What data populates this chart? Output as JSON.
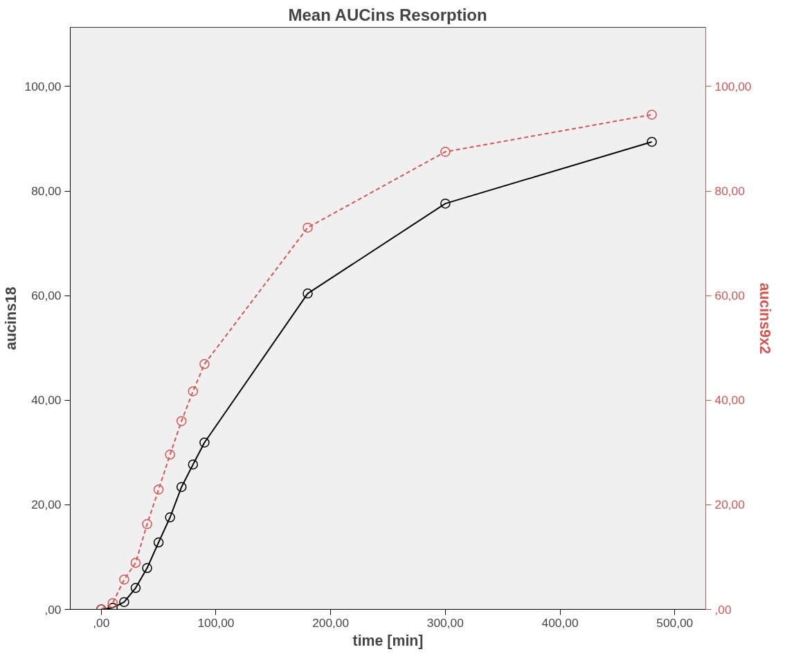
{
  "chart_data": {
    "type": "line",
    "title": "Mean AUCins Resorption",
    "xlabel": "time [min]",
    "ylabel": "aucins18",
    "y2label": "aucins9x2",
    "x": [
      0,
      10,
      20,
      30,
      40,
      50,
      60,
      70,
      80,
      90,
      180,
      300,
      480
    ],
    "series": [
      {
        "color": "#000000",
        "line_style": "solid",
        "marker": "circle",
        "values": [
          0,
          0.3,
          1.4,
          4.1,
          7.9,
          12.8,
          17.6,
          23.4,
          27.7,
          31.9,
          60.4,
          77.6,
          89.4
        ]
      },
      {
        "color": "#d9534f",
        "line_style": "dashed",
        "marker": "circle",
        "axis": "y2",
        "values": [
          0,
          1.2,
          5.7,
          8.9,
          16.3,
          22.9,
          29.6,
          36.0,
          41.7,
          46.9,
          73.0,
          87.5,
          94.6
        ]
      }
    ],
    "xlim": [
      -27,
      527
    ],
    "xticks": [
      {
        "value": 0,
        "label": ",00"
      },
      {
        "value": 100,
        "label": "100,00"
      },
      {
        "value": 200,
        "label": "200,00"
      },
      {
        "value": 300,
        "label": "300,00"
      },
      {
        "value": 400,
        "label": "400,00"
      },
      {
        "value": 500,
        "label": "500,00"
      }
    ],
    "ylim": [
      0,
      111.3
    ],
    "yticks": [
      {
        "value": 0,
        "label": ",00"
      },
      {
        "value": 20,
        "label": "20,00"
      },
      {
        "value": 40,
        "label": "40,00"
      },
      {
        "value": 60,
        "label": "60,00"
      },
      {
        "value": 80,
        "label": "80,00"
      },
      {
        "value": 100,
        "label": "100,00"
      }
    ],
    "y2lim": [
      0,
      111.3
    ],
    "y2ticks": [
      {
        "value": 0,
        "label": ",00"
      },
      {
        "value": 20,
        "label": "20,00"
      },
      {
        "value": 40,
        "label": "40,00"
      },
      {
        "value": 60,
        "label": "60,00"
      },
      {
        "value": 80,
        "label": "80,00"
      },
      {
        "value": 100,
        "label": "100,00"
      }
    ],
    "grid": false
  }
}
